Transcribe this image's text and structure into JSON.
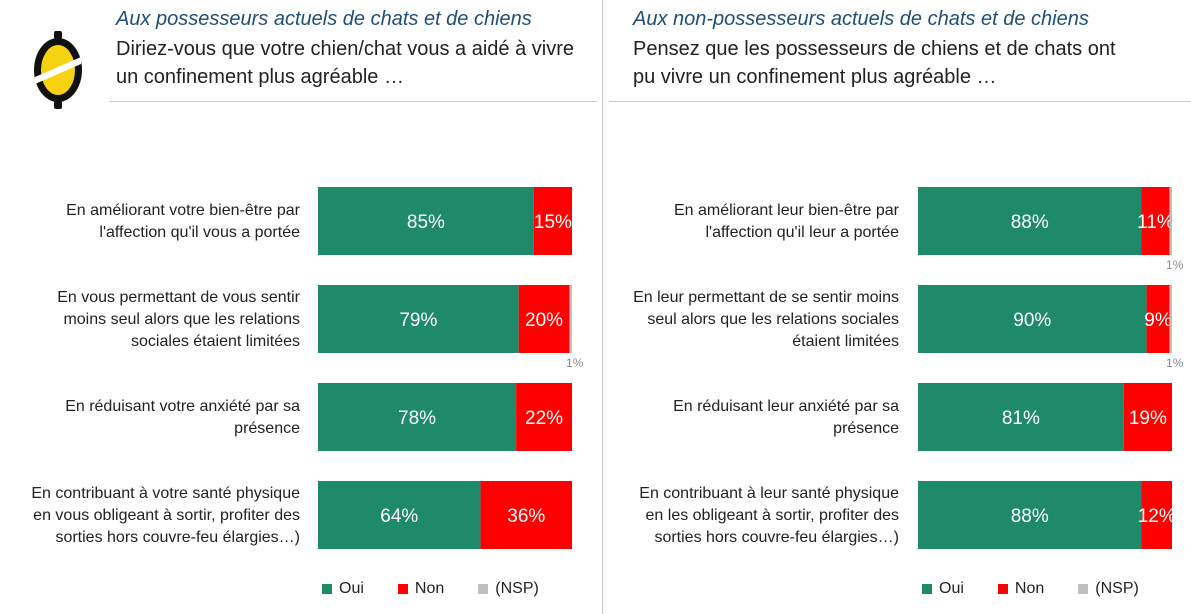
{
  "colors": {
    "oui": "#1e8a6a",
    "non": "#ff0000",
    "nsp": "#bfbfbf",
    "audience": "#1f4e79"
  },
  "logo": {
    "icon": "lemon-logo-icon"
  },
  "panels": [
    {
      "audience": "Aux possesseurs actuels de chats et de chiens",
      "question_lines": [
        "Diriez-vous que votre chien/chat vous a aidé à vivre",
        "un confinement plus agréable …"
      ]
    },
    {
      "audience": "Aux non-possesseurs actuels de chats et de chiens",
      "question_lines": [
        "Pensez que les possesseurs de chiens et de chats ont",
        "pu vivre un confinement plus agréable …"
      ]
    }
  ],
  "legend": {
    "oui": "Oui",
    "non": "Non",
    "nsp": "(NSP)"
  },
  "chart_data": [
    {
      "type": "bar",
      "stacked": true,
      "orientation": "horizontal",
      "categories": [
        [
          "En améliorant votre bien-être par",
          "l'affection qu'il vous a portée"
        ],
        [
          "En vous permettant de vous sentir",
          "moins seul alors que les relations",
          "sociales étaient limitées"
        ],
        [
          "En réduisant votre anxiété par sa",
          "présence"
        ],
        [
          "En contribuant à votre santé physique",
          "en vous obligeant à sortir, profiter des",
          "sorties hors couvre-feu élargies…)"
        ]
      ],
      "series": [
        {
          "name": "Oui",
          "values": [
            85,
            79,
            78,
            64
          ],
          "labels": [
            "85%",
            "79%",
            "78%",
            "64%"
          ]
        },
        {
          "name": "Non",
          "values": [
            15,
            20,
            22,
            36
          ],
          "labels": [
            "15%",
            "20%",
            "22%",
            "36%"
          ]
        },
        {
          "name": "(NSP)",
          "values": [
            0,
            1,
            0,
            0
          ],
          "labels": [
            "",
            "1%",
            "",
            ""
          ]
        }
      ],
      "xlim": [
        0,
        100
      ]
    },
    {
      "type": "bar",
      "stacked": true,
      "orientation": "horizontal",
      "categories": [
        [
          "En améliorant leur bien-être par",
          "l'affection qu'il leur a portée"
        ],
        [
          "En leur permettant de se sentir moins",
          "seul alors que les relations sociales",
          "étaient limitées"
        ],
        [
          "En réduisant leur anxiété par sa",
          "présence"
        ],
        [
          "En contribuant à leur santé physique",
          "en les obligeant à sortir, profiter des",
          "sorties hors couvre-feu élargies…)"
        ]
      ],
      "series": [
        {
          "name": "Oui",
          "values": [
            88,
            90,
            81,
            88
          ],
          "labels": [
            "88%",
            "90%",
            "81%",
            "88%"
          ]
        },
        {
          "name": "Non",
          "values": [
            11,
            9,
            19,
            12
          ],
          "labels": [
            "11%",
            "9%",
            "19%",
            "12%"
          ]
        },
        {
          "name": "(NSP)",
          "values": [
            1,
            1,
            0,
            0
          ],
          "labels": [
            "1%",
            "1%",
            "",
            ""
          ]
        }
      ],
      "xlim": [
        0,
        100
      ]
    }
  ]
}
